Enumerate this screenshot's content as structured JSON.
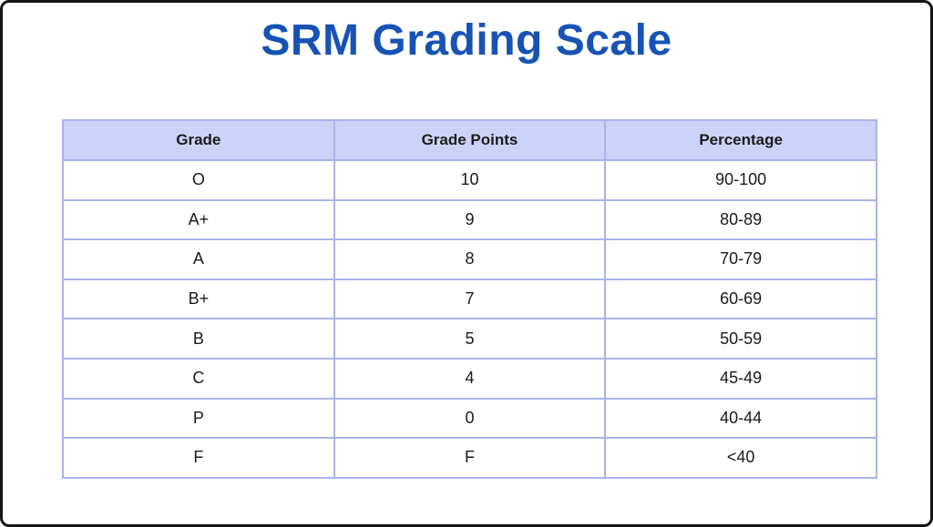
{
  "title": "SRM Grading Scale",
  "colors": {
    "title_blue": "#1753b5",
    "header_background": "#ccd3f8",
    "table_border": "#a9b3ea",
    "frame_border": "#161616"
  },
  "chart_data": {
    "type": "table",
    "title": "SRM Grading Scale",
    "columns": [
      "Grade",
      "Grade Points",
      "Percentage"
    ],
    "rows": [
      [
        "O",
        "10",
        "90-100"
      ],
      [
        "A+",
        "9",
        "80-89"
      ],
      [
        "A",
        "8",
        "70-79"
      ],
      [
        "B+",
        "7",
        "60-69"
      ],
      [
        "B",
        "5",
        "50-59"
      ],
      [
        "C",
        "4",
        "45-49"
      ],
      [
        "P",
        "0",
        "40-44"
      ],
      [
        "F",
        "F",
        "<40"
      ]
    ]
  }
}
